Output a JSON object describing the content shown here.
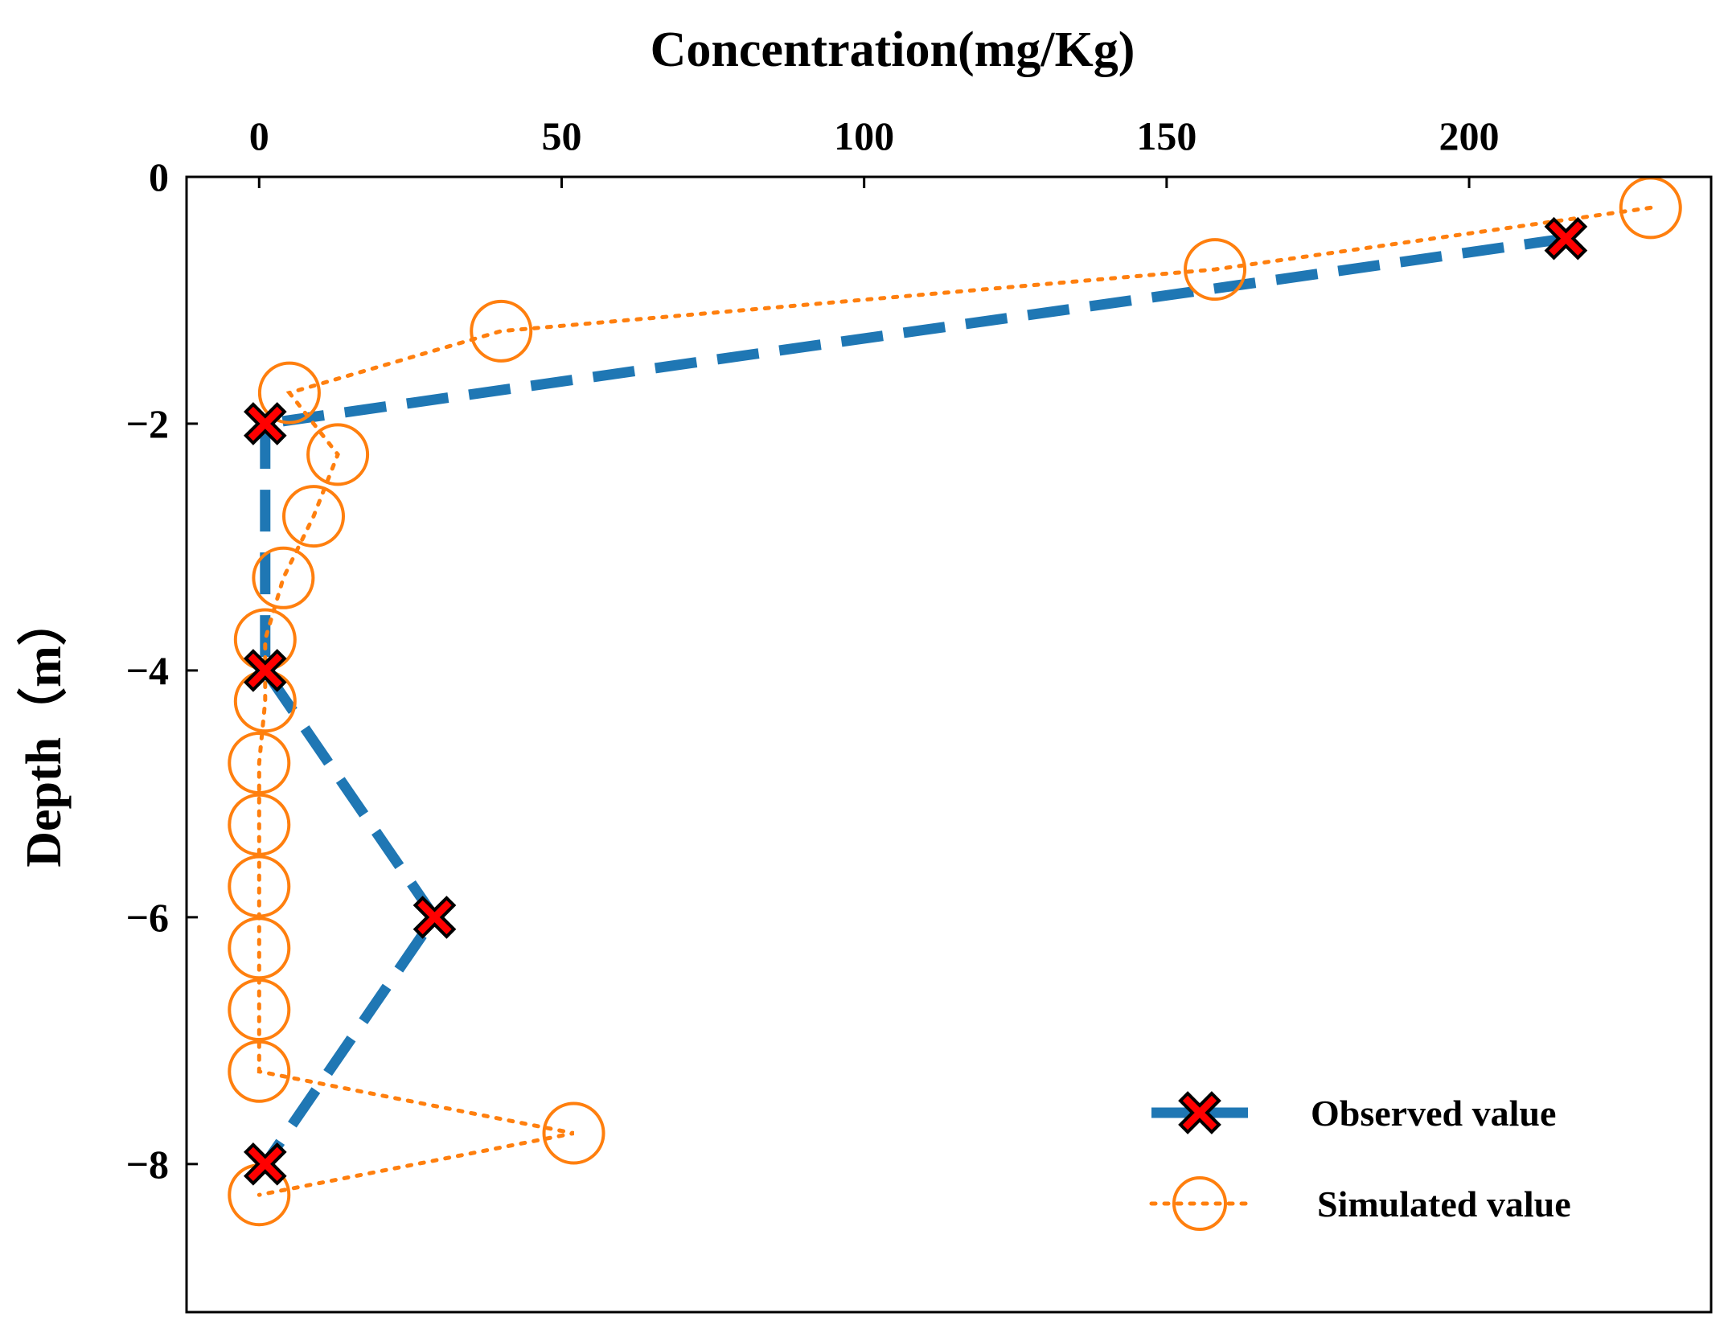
{
  "chart_data": {
    "type": "line",
    "title": "",
    "xlabel": "Concentration(mg/Kg)",
    "ylabel": "Depth（m）",
    "xlim": [
      -12,
      240
    ],
    "ylim": [
      -9.2,
      0
    ],
    "x_ticks": [
      0,
      50,
      100,
      150,
      200
    ],
    "x_tick_labels": [
      "0",
      "50",
      "100",
      "150",
      "200"
    ],
    "y_ticks": [
      0,
      -2,
      -4,
      -6,
      -8
    ],
    "y_tick_labels": [
      "0",
      "−2",
      "−4",
      "−6",
      "−8"
    ],
    "x_axis_position": "top",
    "grid": false,
    "legend_position": "lower-right",
    "series": [
      {
        "name": "Observed value",
        "style": "dashed",
        "marker": "x-filled",
        "color": "#1f77b4",
        "marker_color": "#ff0000",
        "points": [
          {
            "x": 216,
            "y": -0.5
          },
          {
            "x": 1,
            "y": -2
          },
          {
            "x": 1,
            "y": -4
          },
          {
            "x": 29,
            "y": -6
          },
          {
            "x": 1,
            "y": -8
          }
        ]
      },
      {
        "name": "Simulated value",
        "style": "dotted",
        "marker": "circle-open",
        "color": "#ff7f0e",
        "points": [
          {
            "x": 230,
            "y": -0.25
          },
          {
            "x": 158,
            "y": -0.75
          },
          {
            "x": 40,
            "y": -1.25
          },
          {
            "x": 5,
            "y": -1.75
          },
          {
            "x": 13,
            "y": -2.25
          },
          {
            "x": 9,
            "y": -2.75
          },
          {
            "x": 4,
            "y": -3.25
          },
          {
            "x": 1,
            "y": -3.75
          },
          {
            "x": 1,
            "y": -4.25
          },
          {
            "x": 0,
            "y": -4.75
          },
          {
            "x": 0,
            "y": -5.25
          },
          {
            "x": 0,
            "y": -5.75
          },
          {
            "x": 0,
            "y": -6.25
          },
          {
            "x": 0,
            "y": -6.75
          },
          {
            "x": 0,
            "y": -7.25
          },
          {
            "x": 52,
            "y": -7.75
          },
          {
            "x": 0,
            "y": -8.25
          }
        ]
      }
    ]
  }
}
